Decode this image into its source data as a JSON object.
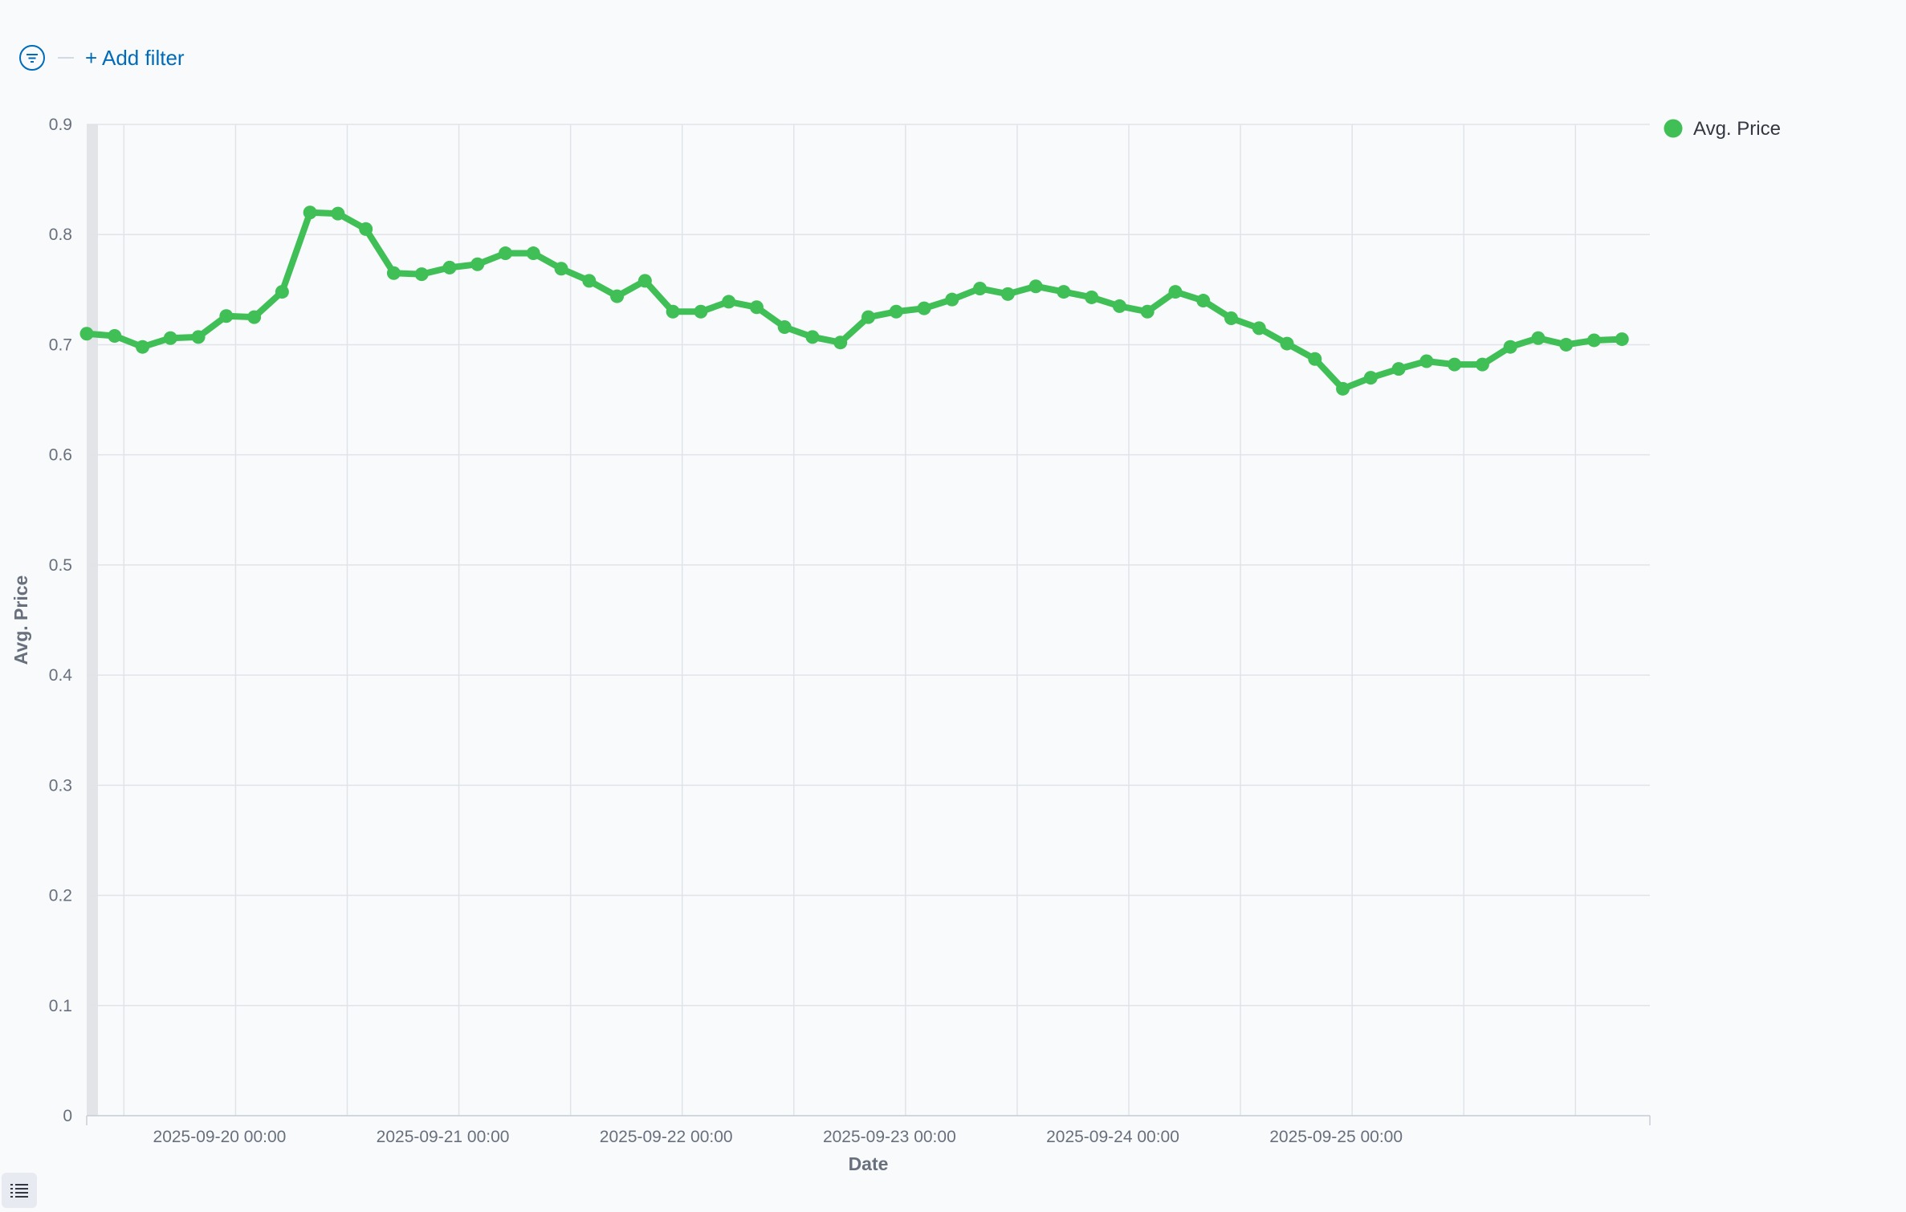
{
  "filter_bar": {
    "add_filter_label": "+ Add filter",
    "filter_icon": "filter-icon"
  },
  "colors": {
    "series": "#3fbf55",
    "grid": "#e0e3e8",
    "axis_text": "#69707d",
    "link": "#006bb8"
  },
  "footer": {
    "list_icon": "list-icon"
  },
  "chart_data": {
    "type": "line",
    "xlabel": "Date",
    "ylabel": "Avg. Price",
    "ylim": [
      0,
      0.9
    ],
    "yticks": [
      "0",
      "0.1",
      "0.2",
      "0.3",
      "0.4",
      "0.5",
      "0.6",
      "0.7",
      "0.8",
      "0.9"
    ],
    "xlim": [
      "2025-09-19 08:00",
      "2025-09-26 08:00"
    ],
    "xtick_labels": [
      {
        "label": "2025-09-20 00:00",
        "at": "2025-09-20 00:00"
      },
      {
        "label": "2025-09-21 00:00",
        "at": "2025-09-21 00:00"
      },
      {
        "label": "2025-09-22 00:00",
        "at": "2025-09-22 00:00"
      },
      {
        "label": "2025-09-23 00:00",
        "at": "2025-09-23 00:00"
      },
      {
        "label": "2025-09-24 00:00",
        "at": "2025-09-24 00:00"
      },
      {
        "label": "2025-09-25 00:00",
        "at": "2025-09-25 00:00"
      }
    ],
    "grid": true,
    "legend": {
      "position": "top-right"
    },
    "series": [
      {
        "name": "Avg. Price",
        "color": "#3fbf55",
        "x": [
          "2025-09-19 08:00",
          "2025-09-19 11:00",
          "2025-09-19 14:00",
          "2025-09-19 17:00",
          "2025-09-19 20:00",
          "2025-09-19 23:00",
          "2025-09-20 02:00",
          "2025-09-20 05:00",
          "2025-09-20 08:00",
          "2025-09-20 11:00",
          "2025-09-20 14:00",
          "2025-09-20 17:00",
          "2025-09-20 20:00",
          "2025-09-20 23:00",
          "2025-09-21 02:00",
          "2025-09-21 05:00",
          "2025-09-21 08:00",
          "2025-09-21 11:00",
          "2025-09-21 14:00",
          "2025-09-21 17:00",
          "2025-09-21 20:00",
          "2025-09-21 23:00",
          "2025-09-22 02:00",
          "2025-09-22 05:00",
          "2025-09-22 08:00",
          "2025-09-22 11:00",
          "2025-09-22 14:00",
          "2025-09-22 17:00",
          "2025-09-22 20:00",
          "2025-09-22 23:00",
          "2025-09-23 02:00",
          "2025-09-23 05:00",
          "2025-09-23 08:00",
          "2025-09-23 11:00",
          "2025-09-23 14:00",
          "2025-09-23 17:00",
          "2025-09-23 20:00",
          "2025-09-23 23:00",
          "2025-09-24 02:00",
          "2025-09-24 05:00",
          "2025-09-24 08:00",
          "2025-09-24 11:00",
          "2025-09-24 14:00",
          "2025-09-24 17:00",
          "2025-09-24 20:00",
          "2025-09-24 23:00",
          "2025-09-25 02:00",
          "2025-09-25 05:00",
          "2025-09-25 08:00",
          "2025-09-25 11:00",
          "2025-09-25 14:00",
          "2025-09-25 17:00",
          "2025-09-25 20:00",
          "2025-09-25 23:00",
          "2025-09-26 02:00",
          "2025-09-26 05:00"
        ],
        "values": [
          0.71,
          0.708,
          0.698,
          0.706,
          0.707,
          0.726,
          0.725,
          0.748,
          0.82,
          0.819,
          0.805,
          0.765,
          0.764,
          0.77,
          0.773,
          0.783,
          0.783,
          0.769,
          0.758,
          0.744,
          0.758,
          0.73,
          0.73,
          0.739,
          0.734,
          0.716,
          0.707,
          0.702,
          0.725,
          0.73,
          0.733,
          0.741,
          0.751,
          0.746,
          0.753,
          0.748,
          0.743,
          0.735,
          0.73,
          0.748,
          0.74,
          0.724,
          0.715,
          0.701,
          0.687,
          0.66,
          0.67,
          0.678,
          0.685,
          0.682,
          0.682,
          0.698,
          0.706,
          0.7,
          0.704,
          0.705
        ]
      }
    ]
  }
}
